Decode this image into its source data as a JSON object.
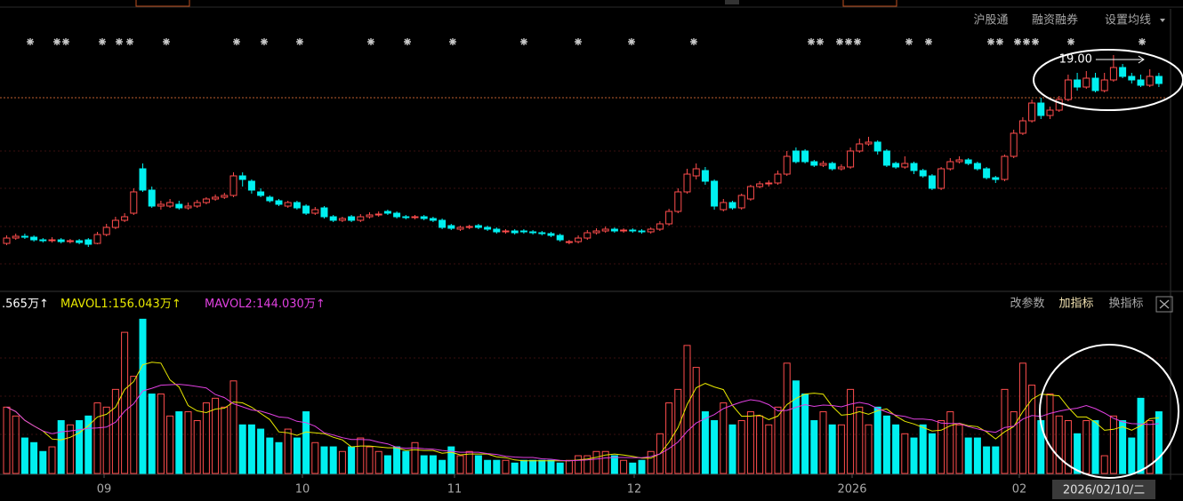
{
  "toolbar": [
    "沪股通",
    "融资融券",
    "设置均线"
  ],
  "indicator_buttons": [
    "改参数",
    "加指标",
    "换指标"
  ],
  "chart_data": {
    "type": "candlestick",
    "annotation": "19.00",
    "up_color": "#ff4d4d",
    "down_color": "#00f0f0",
    "ylim": [
      5.85,
      20.6
    ],
    "open": [
      8.4,
      8.7,
      8.8,
      8.75,
      8.6,
      8.55,
      8.6,
      8.5,
      8.55,
      8.6,
      8.4,
      8.9,
      9.3,
      9.7,
      10.1,
      12.6,
      11.4,
      10.5,
      10.5,
      10.6,
      10.4,
      10.5,
      10.7,
      10.9,
      11.0,
      11.1,
      12.2,
      11.9,
      11.3,
      11.0,
      10.8,
      10.5,
      10.7,
      10.5,
      10.1,
      10.4,
      9.9,
      9.7,
      9.9,
      9.7,
      9.9,
      10.0,
      10.2,
      10.1,
      9.9,
      9.85,
      9.9,
      9.8,
      9.7,
      9.4,
      9.2,
      9.3,
      9.4,
      9.3,
      9.2,
      9.05,
      9.1,
      9.1,
      9.05,
      9.0,
      8.95,
      8.85,
      8.45,
      8.5,
      8.7,
      9.0,
      9.1,
      9.2,
      9.1,
      9.15,
      9.1,
      9.05,
      9.2,
      9.5,
      10.2,
      11.3,
      12.2,
      12.5,
      11.9,
      10.3,
      10.7,
      10.4,
      10.9,
      11.6,
      11.75,
      11.8,
      12.3,
      13.6,
      13.6,
      13.0,
      12.8,
      12.9,
      12.6,
      12.7,
      13.6,
      14.0,
      14.1,
      13.6,
      12.9,
      12.7,
      12.9,
      12.5,
      12.2,
      11.5,
      12.6,
      13.0,
      13.1,
      12.9,
      12.6,
      12.1,
      12.0,
      13.3,
      14.6,
      15.3,
      16.3,
      15.6,
      15.9,
      16.5,
      17.6,
      17.2,
      17.7,
      17.0,
      17.6,
      18.3,
      17.8,
      17.6,
      17.3,
      17.8
    ],
    "high": [
      8.85,
      8.95,
      8.95,
      8.85,
      8.7,
      8.75,
      8.7,
      8.65,
      8.65,
      8.7,
      9.05,
      9.5,
      9.9,
      10.1,
      11.5,
      12.9,
      11.6,
      10.8,
      10.9,
      10.8,
      10.7,
      10.85,
      11.0,
      11.15,
      11.25,
      12.4,
      12.4,
      12.0,
      11.5,
      11.1,
      10.9,
      10.8,
      10.8,
      10.6,
      10.45,
      10.5,
      10.0,
      9.9,
      10.0,
      10.05,
      10.15,
      10.2,
      10.3,
      10.2,
      10.0,
      10.0,
      10.0,
      9.9,
      9.8,
      9.5,
      9.4,
      9.45,
      9.5,
      9.4,
      9.3,
      9.2,
      9.2,
      9.2,
      9.15,
      9.1,
      9.05,
      8.95,
      8.6,
      8.85,
      9.15,
      9.25,
      9.35,
      9.3,
      9.25,
      9.25,
      9.2,
      9.3,
      9.65,
      10.35,
      11.5,
      12.6,
      12.9,
      12.7,
      12.0,
      10.9,
      10.8,
      11.2,
      11.7,
      11.9,
      11.95,
      12.5,
      13.6,
      13.8,
      13.7,
      13.1,
      13.05,
      13.0,
      12.85,
      13.8,
      14.3,
      14.4,
      14.2,
      13.7,
      13.0,
      13.3,
      13.0,
      12.6,
      12.3,
      12.7,
      13.2,
      13.3,
      13.2,
      13.0,
      12.7,
      12.2,
      13.4,
      14.8,
      15.5,
      16.5,
      16.6,
      16.1,
      16.7,
      17.9,
      18.0,
      18.1,
      18.0,
      18.0,
      19.0,
      18.5,
      18.0,
      17.9,
      18.2,
      18.0
    ],
    "low": [
      8.3,
      8.6,
      8.65,
      8.5,
      8.45,
      8.45,
      8.4,
      8.4,
      8.35,
      8.2,
      8.35,
      8.8,
      9.2,
      9.6,
      10.0,
      11.3,
      10.4,
      10.3,
      10.4,
      10.3,
      10.3,
      10.4,
      10.6,
      10.8,
      10.9,
      11.0,
      11.6,
      11.2,
      11.0,
      10.7,
      10.5,
      10.4,
      10.3,
      10.0,
      10.0,
      9.8,
      9.6,
      9.6,
      9.6,
      9.6,
      9.8,
      9.9,
      10.0,
      9.8,
      9.75,
      9.75,
      9.7,
      9.6,
      9.2,
      9.15,
      9.1,
      9.2,
      9.2,
      9.1,
      8.95,
      8.95,
      8.9,
      8.95,
      8.9,
      8.85,
      8.75,
      8.5,
      8.35,
      8.4,
      8.6,
      8.9,
      9.0,
      9.0,
      9.0,
      9.0,
      8.95,
      8.95,
      9.1,
      9.4,
      10.1,
      11.2,
      12.0,
      11.7,
      10.3,
      10.2,
      10.3,
      10.3,
      10.8,
      11.5,
      11.6,
      11.7,
      12.2,
      12.9,
      12.9,
      12.7,
      12.7,
      12.5,
      12.5,
      12.6,
      13.5,
      13.9,
      13.4,
      12.7,
      12.6,
      12.6,
      12.3,
      12.1,
      11.4,
      11.4,
      12.5,
      12.9,
      12.8,
      12.5,
      12.0,
      11.8,
      11.9,
      13.2,
      14.5,
      15.2,
      15.4,
      15.4,
      15.8,
      16.4,
      17.0,
      17.1,
      16.9,
      16.9,
      17.5,
      17.7,
      17.4,
      17.2,
      17.2,
      17.2
    ],
    "close": [
      8.7,
      8.8,
      8.75,
      8.6,
      8.55,
      8.6,
      8.5,
      8.55,
      8.45,
      8.35,
      8.9,
      9.3,
      9.7,
      9.9,
      11.3,
      11.4,
      10.5,
      10.6,
      10.7,
      10.4,
      10.5,
      10.7,
      10.9,
      11.0,
      11.1,
      12.2,
      12.0,
      11.4,
      11.1,
      10.8,
      10.6,
      10.7,
      10.4,
      10.1,
      10.3,
      9.9,
      9.7,
      9.8,
      9.7,
      9.9,
      10.0,
      10.05,
      10.1,
      9.9,
      9.85,
      9.9,
      9.8,
      9.7,
      9.3,
      9.25,
      9.3,
      9.35,
      9.3,
      9.2,
      9.05,
      9.1,
      9.0,
      9.05,
      9.0,
      8.95,
      8.85,
      8.6,
      8.5,
      8.7,
      9.0,
      9.1,
      9.2,
      9.1,
      9.15,
      9.1,
      9.05,
      9.2,
      9.5,
      10.2,
      11.3,
      12.3,
      12.6,
      11.9,
      10.5,
      10.7,
      10.4,
      11.1,
      11.6,
      11.75,
      11.8,
      12.3,
      13.3,
      13.0,
      13.0,
      12.8,
      12.9,
      12.6,
      12.7,
      13.6,
      14.0,
      14.1,
      13.6,
      12.8,
      12.7,
      12.9,
      12.5,
      12.2,
      11.5,
      12.6,
      13.0,
      13.1,
      12.9,
      12.6,
      12.1,
      12.0,
      13.3,
      14.6,
      15.3,
      16.3,
      15.6,
      15.9,
      16.5,
      17.6,
      17.2,
      17.7,
      17.0,
      17.6,
      18.3,
      17.8,
      17.6,
      17.3,
      17.8,
      17.4
    ],
    "volume": {
      "type": "bar",
      "ylim": [
        0,
        410
      ],
      "legend": [
        ".565万↑",
        "MAVOL1:156.043万↑",
        "MAVOL2:144.030万↑"
      ],
      "legend_colors": [
        "#ffffff",
        "#e8e800",
        "#e040e0"
      ],
      "values": [
        172,
        149,
        92,
        80,
        57,
        69,
        137,
        126,
        137,
        149,
        183,
        172,
        218,
        366,
        252,
        400,
        206,
        206,
        149,
        160,
        160,
        137,
        183,
        195,
        172,
        240,
        126,
        126,
        115,
        92,
        80,
        115,
        92,
        160,
        80,
        69,
        69,
        57,
        69,
        92,
        69,
        57,
        46,
        69,
        57,
        80,
        46,
        46,
        34,
        69,
        46,
        57,
        46,
        34,
        34,
        34,
        27,
        34,
        34,
        34,
        34,
        27,
        34,
        46,
        46,
        57,
        57,
        46,
        34,
        27,
        34,
        57,
        103,
        183,
        218,
        332,
        275,
        160,
        137,
        183,
        126,
        137,
        160,
        149,
        126,
        172,
        286,
        240,
        206,
        137,
        160,
        126,
        126,
        218,
        172,
        126,
        172,
        149,
        126,
        103,
        92,
        126,
        103,
        137,
        160,
        126,
        92,
        92,
        69,
        69,
        218,
        160,
        286,
        229,
        137,
        206,
        149,
        137,
        103,
        137,
        137,
        46,
        149,
        137,
        92,
        195,
        137,
        160
      ]
    },
    "x_labels": [
      "09",
      "10",
      "11",
      "12",
      "2026",
      "02"
    ],
    "cursor_date": "2026/02/10/二"
  }
}
